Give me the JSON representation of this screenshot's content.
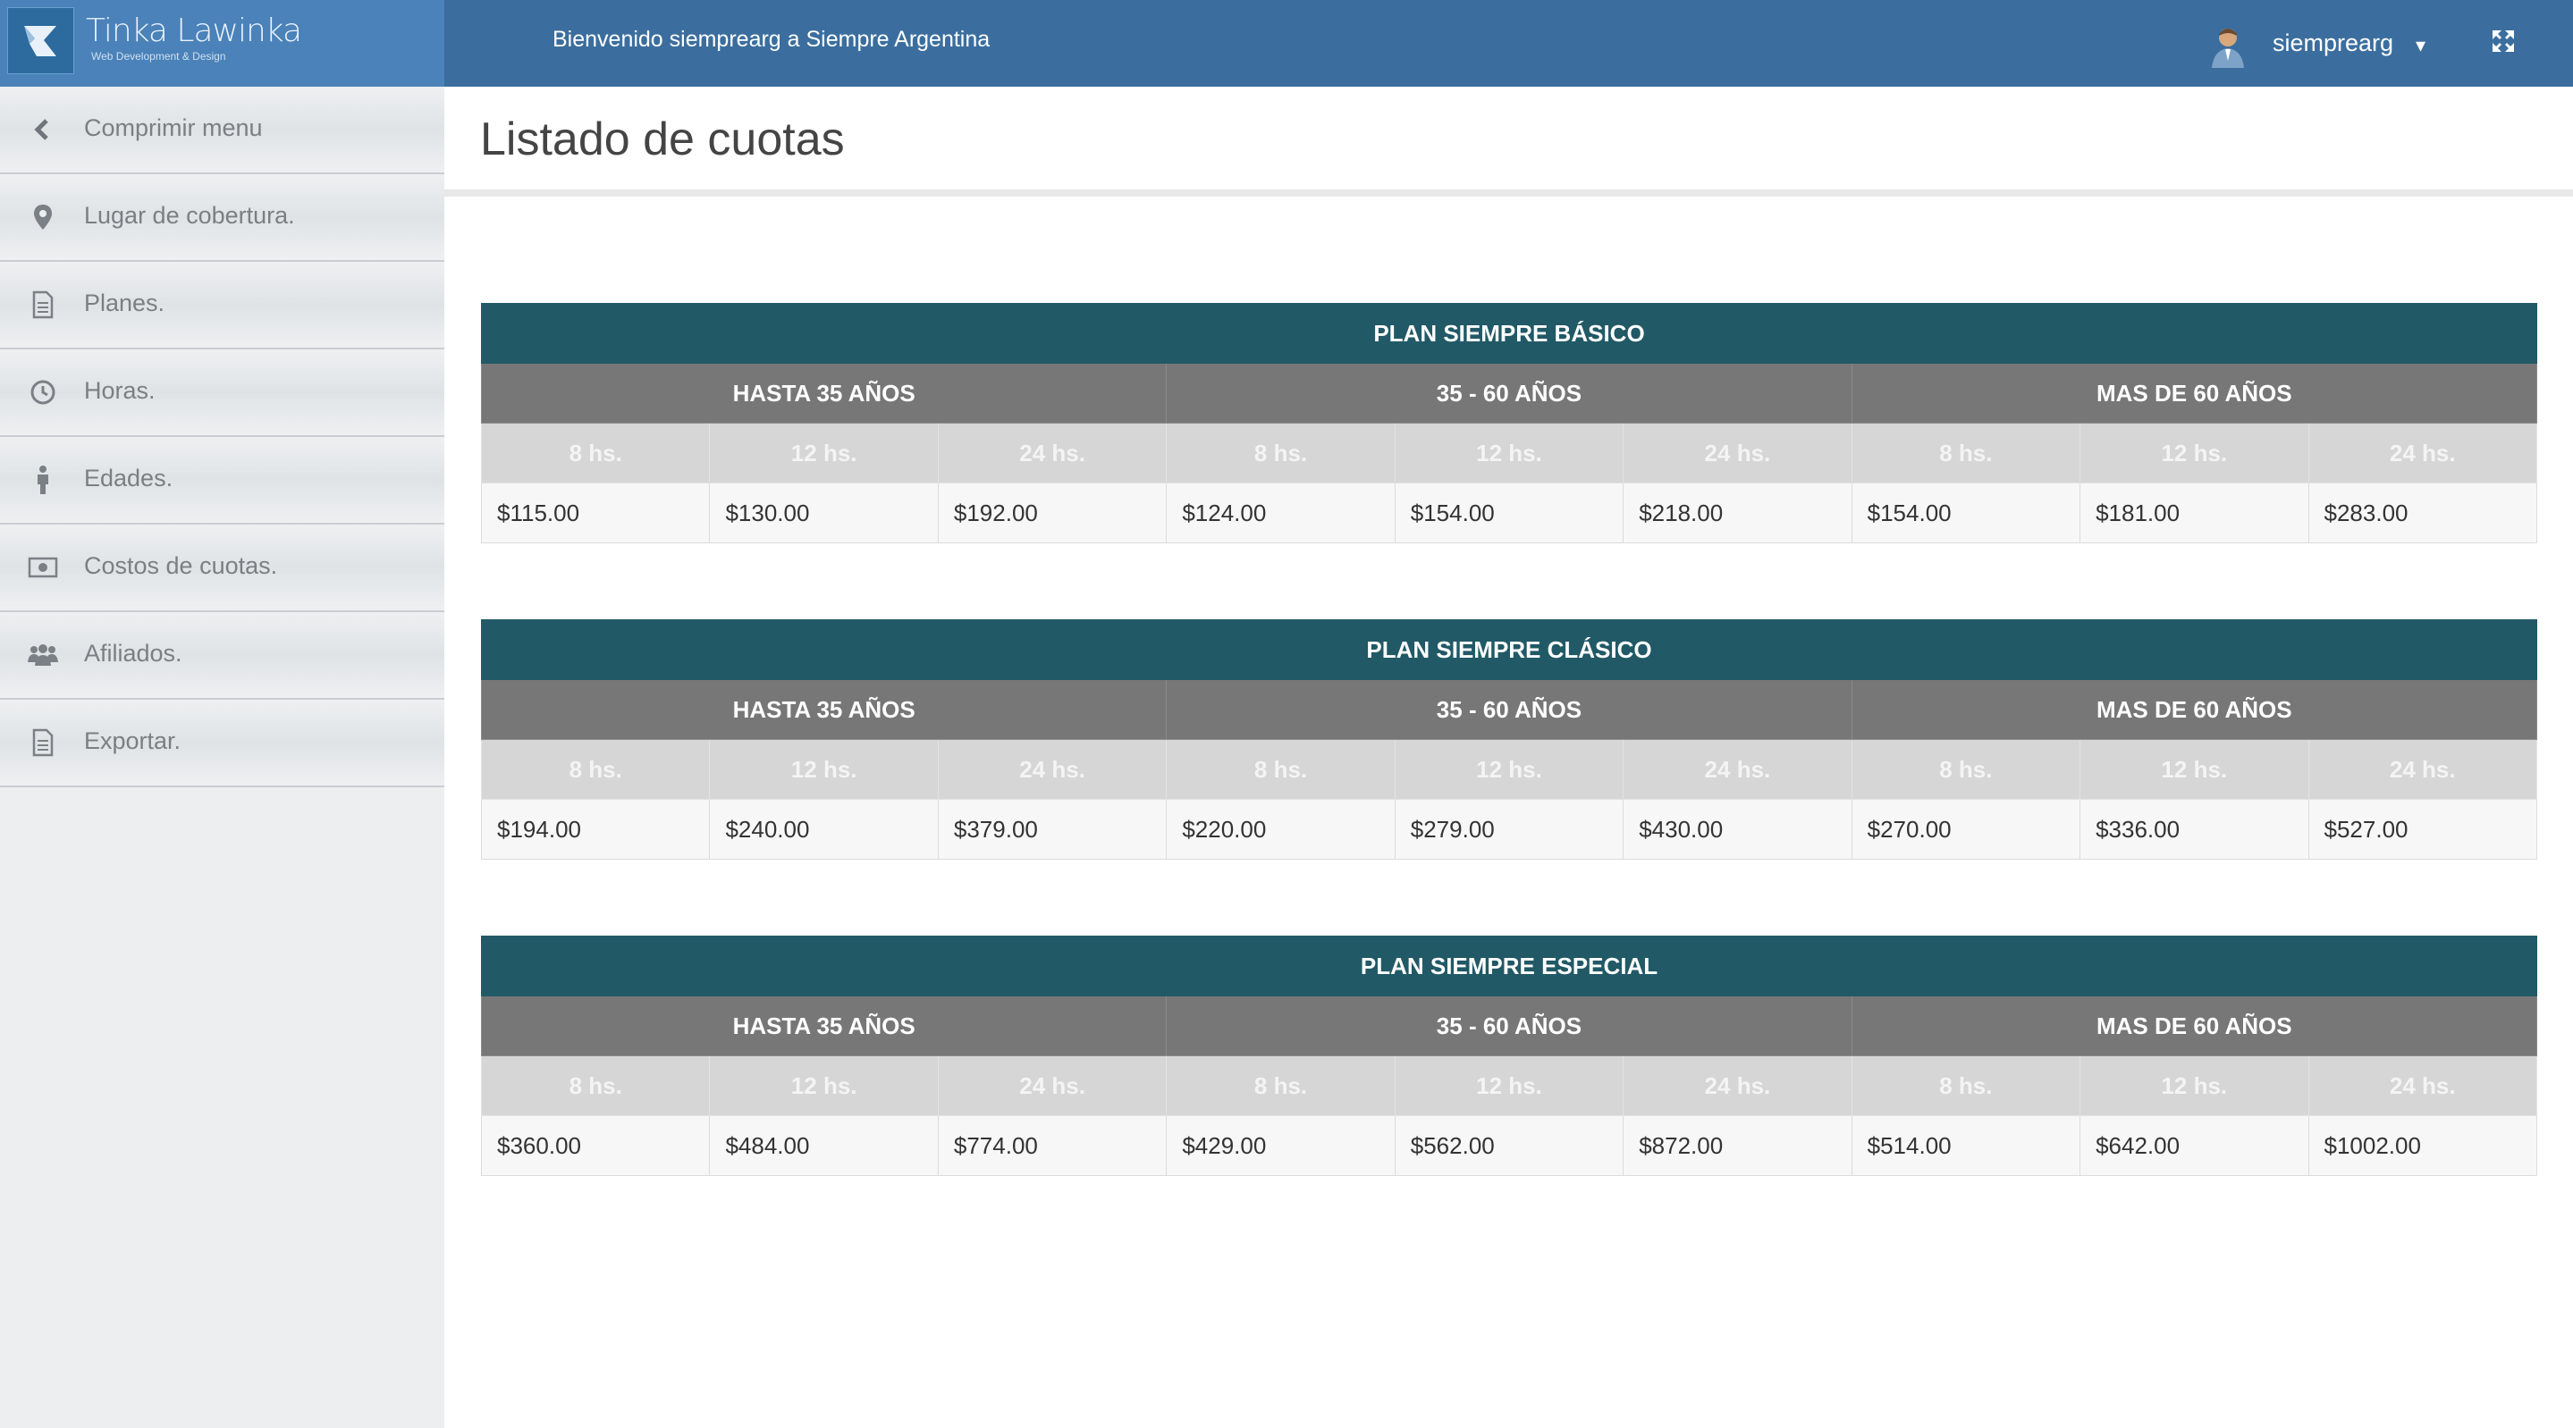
{
  "header": {
    "brand_name": "Tinka Lawinka",
    "brand_subtitle": "Web Development & Design",
    "welcome": "Bienvenido siemprearg a Siempre Argentina",
    "username": "siemprearg",
    "caret": "▾",
    "colors": {
      "bar": "#3b6e9e",
      "brand": "#4a82b9"
    }
  },
  "sidebar": {
    "items": [
      {
        "label": "Comprimir menu",
        "icon": "chevron-left-icon"
      },
      {
        "label": "Lugar de cobertura.",
        "icon": "map-marker-icon"
      },
      {
        "label": "Planes.",
        "icon": "document-icon"
      },
      {
        "label": "Horas.",
        "icon": "clock-icon"
      },
      {
        "label": "Edades.",
        "icon": "person-icon"
      },
      {
        "label": "Costos de cuotas.",
        "icon": "money-icon"
      },
      {
        "label": "Afiliados.",
        "icon": "users-icon"
      },
      {
        "label": "Exportar.",
        "icon": "document-icon"
      }
    ]
  },
  "main": {
    "title": "Listado de cuotas",
    "age_groups": [
      "HASTA 35 AÑOS",
      "35 - 60 AÑOS",
      "MAS DE 60 AÑOS"
    ],
    "hours": [
      "8 hs.",
      "12 hs.",
      "24 hs."
    ],
    "colors": {
      "plan_header": "#215966",
      "age_header": "#777777",
      "hours_header": "#d6d6d6"
    },
    "plans": [
      {
        "name": "PLAN SIEMPRE BÁSICO",
        "prices": [
          "$115.00",
          "$130.00",
          "$192.00",
          "$124.00",
          "$154.00",
          "$218.00",
          "$154.00",
          "$181.00",
          "$283.00"
        ]
      },
      {
        "name": "PLAN SIEMPRE CLÁSICO",
        "prices": [
          "$194.00",
          "$240.00",
          "$379.00",
          "$220.00",
          "$279.00",
          "$430.00",
          "$270.00",
          "$336.00",
          "$527.00"
        ]
      },
      {
        "name": "PLAN SIEMPRE ESPECIAL",
        "prices": [
          "$360.00",
          "$484.00",
          "$774.00",
          "$429.00",
          "$562.00",
          "$872.00",
          "$514.00",
          "$642.00",
          "$1002.00"
        ]
      }
    ]
  }
}
